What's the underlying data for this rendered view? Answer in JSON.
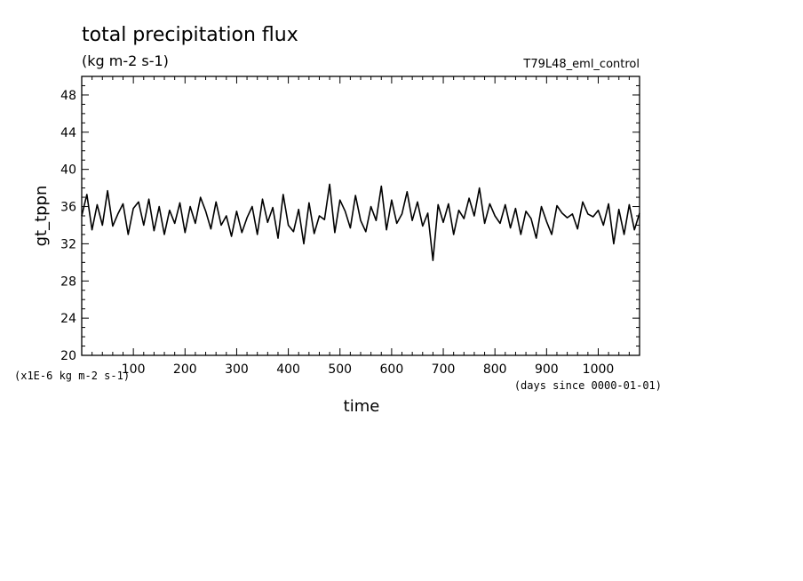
{
  "chart_data": {
    "type": "line",
    "title": "total precipitation flux",
    "subtitle": "(kg m-2 s-1)",
    "run_label": "T79L48_eml_control",
    "xlabel": "time",
    "x_units": "(days since 0000-01-01)",
    "ylabel": "gt_tppn",
    "y_scale_note": "(x1E-6 kg m-2 s-1)",
    "xlim": [
      0,
      1080
    ],
    "ylim": [
      20,
      50
    ],
    "x_ticks": [
      100,
      200,
      300,
      400,
      500,
      600,
      700,
      800,
      900,
      1000
    ],
    "y_ticks": [
      20,
      24,
      28,
      32,
      36,
      40,
      44,
      48
    ],
    "grid": false,
    "line_color": "#000000",
    "series": [
      {
        "x": [
          0,
          10,
          20,
          30,
          40,
          50,
          60,
          70,
          80,
          90,
          100,
          110,
          120,
          130,
          140,
          150,
          160,
          170,
          180,
          190,
          200,
          210,
          220,
          230,
          240,
          250,
          260,
          270,
          280,
          290,
          300,
          310,
          320,
          330,
          340,
          350,
          360,
          370,
          380,
          390,
          400,
          410,
          420,
          430,
          440,
          450,
          460,
          470,
          480,
          490,
          500,
          510,
          520,
          530,
          540,
          550,
          560,
          570,
          580,
          590,
          600,
          610,
          620,
          630,
          640,
          650,
          660,
          670,
          680,
          690,
          700,
          710,
          720,
          730,
          740,
          750,
          760,
          770,
          780,
          790,
          800,
          810,
          820,
          830,
          840,
          850,
          860,
          870,
          880,
          890,
          900,
          910,
          920,
          930,
          940,
          950,
          960,
          970,
          980,
          990,
          1000,
          1010,
          1020,
          1030,
          1040,
          1050,
          1060,
          1070,
          1080
        ],
        "y": [
          35.0,
          37.3,
          33.5,
          36.2,
          34.0,
          37.7,
          33.9,
          35.2,
          36.3,
          33.0,
          35.8,
          36.5,
          34.0,
          36.8,
          33.4,
          36.0,
          33.0,
          35.6,
          34.2,
          36.4,
          33.2,
          36.0,
          34.2,
          37.0,
          35.5,
          33.6,
          36.5,
          34.0,
          35.0,
          32.8,
          35.5,
          33.2,
          34.8,
          36.0,
          33.0,
          36.8,
          34.3,
          35.9,
          32.6,
          37.3,
          34.0,
          33.3,
          35.7,
          32.0,
          36.4,
          33.1,
          35.0,
          34.6,
          38.4,
          33.2,
          36.7,
          35.5,
          33.7,
          37.2,
          34.5,
          33.3,
          36.0,
          34.5,
          38.2,
          33.5,
          36.7,
          34.2,
          35.2,
          37.6,
          34.5,
          36.5,
          33.9,
          35.3,
          30.2,
          36.2,
          34.3,
          36.3,
          33.0,
          35.6,
          34.7,
          36.9,
          35.0,
          38.0,
          34.2,
          36.3,
          35.0,
          34.2,
          36.2,
          33.7,
          35.8,
          33.0,
          35.5,
          34.7,
          32.6,
          36.0,
          34.4,
          33.0,
          36.1,
          35.3,
          34.8,
          35.2,
          33.6,
          36.5,
          35.2,
          34.9,
          35.6,
          34.0,
          36.3,
          32.0,
          35.7,
          33.0,
          36.2,
          33.5,
          35.3
        ]
      }
    ]
  }
}
